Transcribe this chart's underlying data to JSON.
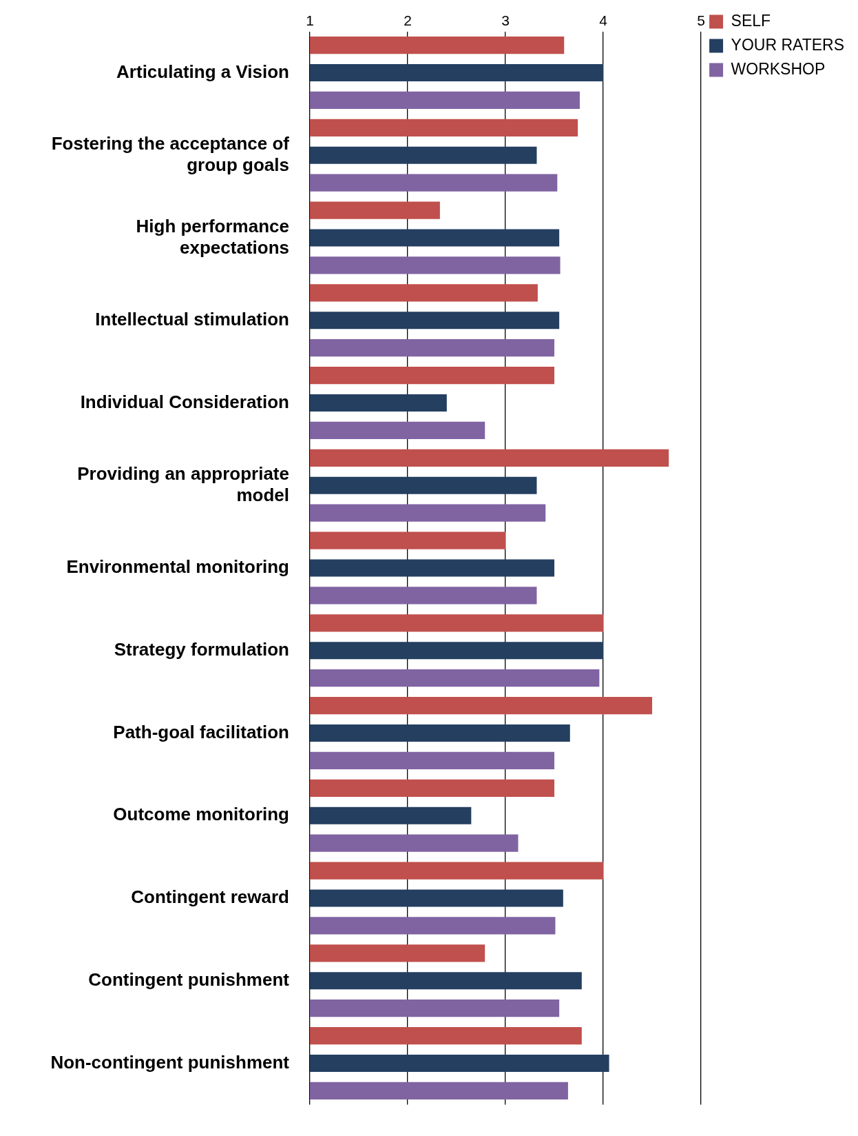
{
  "chart_data": {
    "type": "bar",
    "orientation": "horizontal",
    "categories": [
      "Articulating a Vision",
      "Fostering the acceptance of group goals",
      "High performance expectations",
      "Intellectual stimulation",
      "Individual Consideration",
      "Providing an appropriate model",
      "Environmental monitoring",
      "Strategy formulation",
      "Path-goal facilitation",
      "Outcome monitoring",
      "Contingent reward",
      "Contingent punishment",
      "Non-contingent punishment"
    ],
    "series": [
      {
        "name": "SELF",
        "color": "#c0504d",
        "values": [
          3.6,
          3.74,
          2.33,
          3.33,
          3.5,
          4.67,
          3.0,
          4.0,
          4.5,
          3.5,
          4.0,
          2.79,
          3.78
        ]
      },
      {
        "name": "YOUR RATERS",
        "color": "#243f60",
        "values": [
          4.0,
          3.32,
          3.55,
          3.55,
          2.4,
          3.32,
          3.5,
          4.0,
          3.66,
          2.65,
          3.59,
          3.78,
          4.06
        ]
      },
      {
        "name": "WORKSHOP",
        "color": "#8064a2",
        "values": [
          3.76,
          3.53,
          3.56,
          3.5,
          2.79,
          3.41,
          3.32,
          3.96,
          3.5,
          3.13,
          3.51,
          3.55,
          3.64
        ]
      }
    ],
    "xlim": [
      1,
      5
    ],
    "xticks": [
      1,
      2,
      3,
      4,
      5
    ],
    "grid": "x",
    "legend": "top right"
  }
}
